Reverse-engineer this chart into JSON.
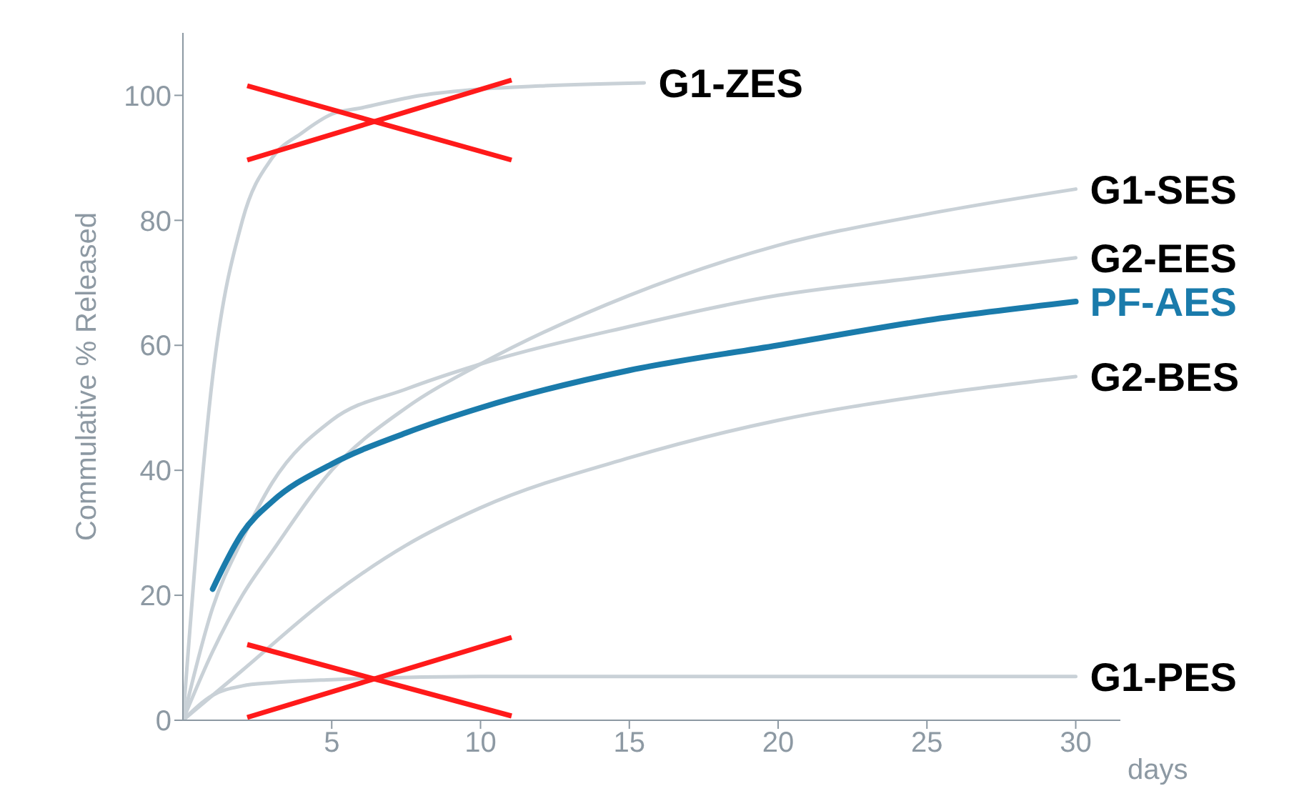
{
  "chart_data": {
    "type": "line",
    "ylabel": "Commulative % Released",
    "xlabel": "days",
    "xlim": [
      0,
      31.5
    ],
    "xticks": [
      5,
      10,
      15,
      20,
      25,
      30
    ],
    "ylim": [
      0,
      110
    ],
    "yticks": [
      0,
      20,
      40,
      60,
      80,
      100
    ],
    "grid": false,
    "legend": false,
    "marker": "none",
    "line_style": "solid",
    "series": [
      {
        "name": "G1-ZES",
        "color": "#c9d1d7",
        "x": [
          0,
          1,
          2,
          3,
          4,
          5,
          6,
          8,
          10,
          12,
          15.5
        ],
        "values": [
          0,
          55,
          80,
          90,
          94,
          97,
          98,
          100,
          101,
          101.5,
          102
        ]
      },
      {
        "name": "G1-SES",
        "color": "#c9d1d7",
        "x": [
          0,
          1,
          2,
          3,
          5,
          7.5,
          10,
          15,
          20,
          25,
          30
        ],
        "values": [
          0,
          11,
          20,
          27,
          40,
          50,
          57,
          68,
          76,
          81,
          85
        ]
      },
      {
        "name": "G2-EES",
        "color": "#c9d1d7",
        "x": [
          0,
          1,
          2,
          3,
          5,
          7.5,
          10,
          15,
          20,
          25,
          30
        ],
        "values": [
          0,
          18,
          29,
          38,
          48,
          53,
          57,
          63,
          68,
          71,
          74
        ]
      },
      {
        "name": "PF-AES",
        "color": "#1a7bab",
        "x": [
          1,
          2,
          3,
          5,
          7.5,
          10,
          15,
          20,
          25,
          30
        ],
        "values": [
          21,
          30,
          35,
          41,
          46,
          50,
          56,
          60,
          64,
          67
        ]
      },
      {
        "name": "G2-BES",
        "color": "#c9d1d7",
        "x": [
          0,
          2,
          5,
          7.5,
          10,
          15,
          20,
          25,
          30
        ],
        "values": [
          0,
          8,
          20,
          28,
          34,
          42,
          48,
          52,
          55
        ]
      },
      {
        "name": "G1-PES",
        "color": "#c9d1d7",
        "x": [
          0,
          1,
          2,
          3,
          5,
          10,
          20,
          30
        ],
        "values": [
          0,
          4,
          5.5,
          6,
          6.5,
          7,
          7,
          7
        ]
      }
    ]
  }
}
